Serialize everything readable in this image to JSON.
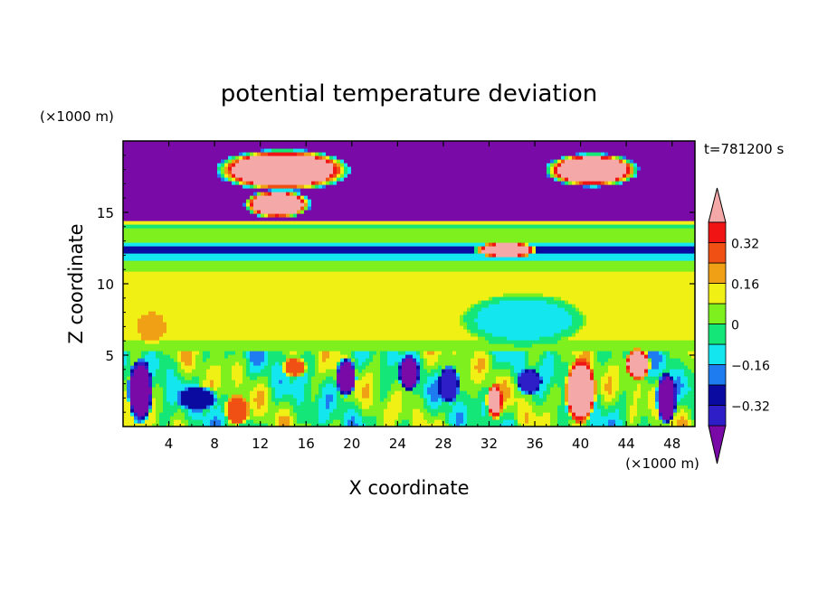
{
  "chart_data": {
    "type": "heatmap",
    "title": "potential temperature deviation",
    "xlabel": "X coordinate",
    "ylabel": "Z coordinate",
    "x_unit": "(×1000 m)",
    "y_unit": "(×1000 m)",
    "time_label": "t=781200 s",
    "xlim": [
      0,
      50
    ],
    "ylim": [
      0,
      20
    ],
    "xticks": [
      4,
      8,
      12,
      16,
      20,
      24,
      28,
      32,
      36,
      40,
      44,
      48
    ],
    "yticks": [
      5,
      10,
      15
    ],
    "colorbar": {
      "levels": [
        -0.4,
        -0.32,
        -0.24,
        -0.16,
        -0.08,
        0,
        0.08,
        0.16,
        0.24,
        0.32,
        0.4
      ],
      "labels": [
        "-0.32",
        "-0.16",
        "0",
        "0.16",
        "0.32"
      ],
      "label_values": [
        -0.32,
        -0.16,
        0,
        0.16,
        0.32
      ],
      "colors": [
        "#7a0aa8",
        "#2d1ec8",
        "#0a0aa0",
        "#1e7cf0",
        "#14e6f0",
        "#14e678",
        "#7ef01e",
        "#f0f014",
        "#f0a014",
        "#f05014",
        "#f01414",
        "#f4a8a8"
      ],
      "extend": "both"
    },
    "bands": [
      {
        "z": [
          14.5,
          20
        ],
        "value": -0.5
      },
      {
        "z": [
          14.2,
          14.5
        ],
        "value": 0.1
      },
      {
        "z": [
          13.8,
          14.2
        ],
        "value": -0.05
      },
      {
        "z": [
          13.0,
          13.8
        ],
        "value": 0.05
      },
      {
        "z": [
          12.6,
          13.0
        ],
        "value": -0.1
      },
      {
        "z": [
          12.2,
          12.6
        ],
        "value": -0.3
      },
      {
        "z": [
          11.6,
          12.2
        ],
        "value": -0.1
      },
      {
        "z": [
          11.0,
          11.6
        ],
        "value": 0.03
      },
      {
        "z": [
          6.0,
          11.0
        ],
        "value": 0.08
      },
      {
        "z": [
          5.2,
          6.0
        ],
        "value": 0.02
      }
    ],
    "blobs": [
      {
        "x": 14.0,
        "z": 18.0,
        "rx": 6.5,
        "rz": 1.6,
        "value": 0.5
      },
      {
        "x": 13.5,
        "z": 15.6,
        "rx": 3.2,
        "rz": 1.1,
        "value": 0.5
      },
      {
        "x": 41.0,
        "z": 18.0,
        "rx": 4.5,
        "rz": 1.3,
        "value": 0.5
      },
      {
        "x": 33.5,
        "z": 12.4,
        "rx": 3.0,
        "rz": 0.6,
        "value": 0.5
      },
      {
        "x": 2.5,
        "z": 7.0,
        "rx": 1.6,
        "rz": 1.3,
        "value": 0.2
      },
      {
        "x": 35.0,
        "z": 7.5,
        "rx": 6.0,
        "rz": 2.0,
        "value": -0.1
      },
      {
        "x": 40.0,
        "z": 2.5,
        "rx": 1.5,
        "rz": 2.5,
        "value": 0.5
      },
      {
        "x": 45.0,
        "z": 4.4,
        "rx": 1.2,
        "rz": 1.2,
        "value": 0.5
      },
      {
        "x": 32.5,
        "z": 1.8,
        "rx": 0.8,
        "rz": 1.4,
        "value": 0.4
      },
      {
        "x": 10.0,
        "z": 1.2,
        "rx": 1.2,
        "rz": 1.2,
        "value": 0.3
      },
      {
        "x": 15.0,
        "z": 4.2,
        "rx": 1.2,
        "rz": 0.8,
        "value": 0.25
      },
      {
        "x": 35.5,
        "z": 3.2,
        "rx": 1.2,
        "rz": 1.0,
        "value": -0.4
      },
      {
        "x": 6.5,
        "z": 2.0,
        "rx": 2.0,
        "rz": 1.0,
        "value": -0.3
      },
      {
        "x": 1.5,
        "z": 2.5,
        "rx": 1.2,
        "rz": 2.5,
        "value": -0.5
      },
      {
        "x": 19.5,
        "z": 3.5,
        "rx": 1.0,
        "rz": 1.5,
        "value": -0.5
      },
      {
        "x": 25.0,
        "z": 3.8,
        "rx": 1.0,
        "rz": 1.4,
        "value": -0.5
      },
      {
        "x": 28.5,
        "z": 3.0,
        "rx": 1.0,
        "rz": 1.5,
        "value": -0.4
      },
      {
        "x": 47.5,
        "z": 2.0,
        "rx": 1.0,
        "rz": 2.0,
        "value": -0.5
      }
    ]
  }
}
